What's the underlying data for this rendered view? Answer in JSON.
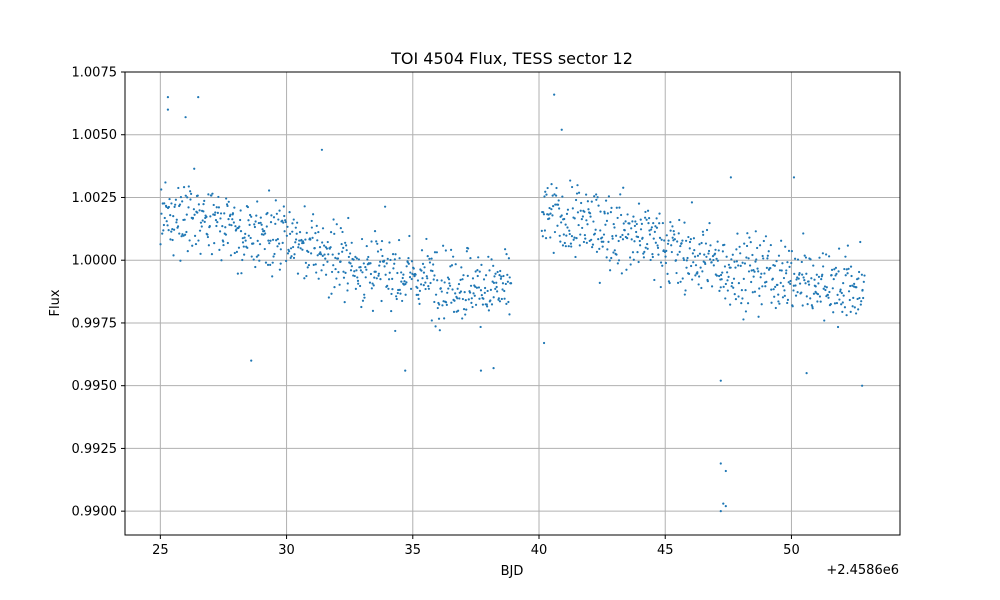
{
  "chart_data": {
    "type": "scatter",
    "title": "TOI 4504 Flux, TESS sector 12",
    "xlabel": "BJD",
    "ylabel": "Flux",
    "x_offset_label": "+2.4586e6",
    "xlim": [
      23.6,
      54.3
    ],
    "ylim": [
      0.98905,
      1.0075
    ],
    "xticks": [
      25,
      30,
      35,
      40,
      45,
      50
    ],
    "yticks": [
      "0.9900",
      "0.9925",
      "0.9950",
      "0.9975",
      "1.0000",
      "1.0025",
      "1.0050",
      "1.0075"
    ],
    "grid": true,
    "marker_color": "#1f77b4",
    "segments": [
      {
        "x_start": 25.0,
        "x_end": 38.9,
        "trend": [
          [
            25.0,
            1.002
          ],
          [
            30.0,
            1.0008
          ],
          [
            33.5,
            0.9996
          ],
          [
            38.9,
            0.9988
          ]
        ]
      },
      {
        "x_start": 40.1,
        "x_end": 52.9,
        "trend": [
          [
            40.1,
            1.0018
          ],
          [
            44.0,
            1.001
          ],
          [
            47.0,
            0.9998
          ],
          [
            52.9,
            0.9988
          ]
        ]
      }
    ],
    "notable_points": [
      {
        "x": 25.3,
        "y": 1.0065
      },
      {
        "x": 26.5,
        "y": 1.0065
      },
      {
        "x": 25.3,
        "y": 1.006
      },
      {
        "x": 26.0,
        "y": 1.0057
      },
      {
        "x": 40.6,
        "y": 1.0066
      },
      {
        "x": 40.9,
        "y": 1.0052
      },
      {
        "x": 31.4,
        "y": 1.0044
      },
      {
        "x": 28.6,
        "y": 0.996
      },
      {
        "x": 34.7,
        "y": 0.9956
      },
      {
        "x": 37.7,
        "y": 0.9956
      },
      {
        "x": 38.2,
        "y": 0.9957
      },
      {
        "x": 40.2,
        "y": 0.9967
      },
      {
        "x": 47.2,
        "y": 0.9952
      },
      {
        "x": 47.2,
        "y": 0.9919
      },
      {
        "x": 47.4,
        "y": 0.9916
      },
      {
        "x": 47.3,
        "y": 0.9903
      },
      {
        "x": 47.4,
        "y": 0.9902
      },
      {
        "x": 47.2,
        "y": 0.99
      },
      {
        "x": 50.6,
        "y": 0.9955
      },
      {
        "x": 52.8,
        "y": 0.995
      },
      {
        "x": 50.1,
        "y": 1.0033
      },
      {
        "x": 47.6,
        "y": 1.0033
      }
    ]
  }
}
